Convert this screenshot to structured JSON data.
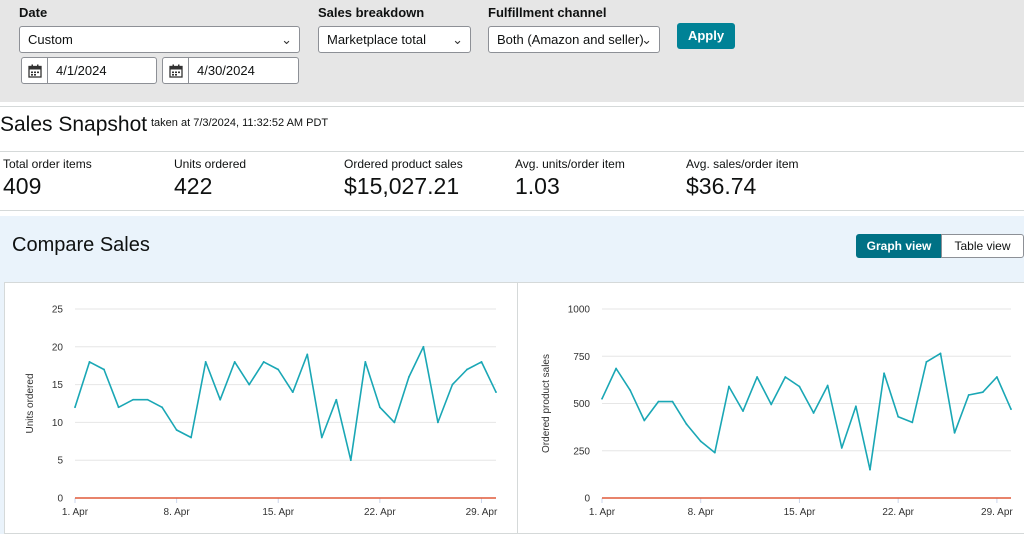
{
  "filters": {
    "date_label": "Date",
    "date_range_value": "Custom",
    "start_date": "4/1/2024",
    "end_date": "4/30/2024",
    "sales_breakdown_label": "Sales breakdown",
    "sales_breakdown_value": "Marketplace total",
    "fulfillment_label": "Fulfillment channel",
    "fulfillment_value": "Both (Amazon and seller)",
    "apply_label": "Apply"
  },
  "snapshot": {
    "title": "Sales Snapshot",
    "taken_at": "taken at 7/3/2024, 11:32:52 AM PDT",
    "metrics": [
      {
        "label": "Total order items",
        "value": "409"
      },
      {
        "label": "Units ordered",
        "value": "422"
      },
      {
        "label": "Ordered product sales",
        "value": "$15,027.21"
      },
      {
        "label": "Avg. units/order item",
        "value": "1.03"
      },
      {
        "label": "Avg. sales/order item",
        "value": "$36.74"
      }
    ]
  },
  "compare": {
    "title": "Compare Sales",
    "graph_view_label": "Graph view",
    "table_view_label": "Table view"
  },
  "colors": {
    "accent": "#008296",
    "series_line": "#1aa7b5",
    "baseline": "#e05a3a"
  },
  "chart_data": [
    {
      "type": "line",
      "ylabel": "Units ordered",
      "ylim": [
        0,
        25
      ],
      "yticks": [
        0,
        5,
        10,
        15,
        20,
        25
      ],
      "xtick_labels": [
        "1. Apr",
        "8. Apr",
        "15. Apr",
        "22. Apr",
        "29. Apr"
      ],
      "xtick_days": [
        1,
        8,
        15,
        22,
        29
      ],
      "x": [
        1,
        2,
        3,
        4,
        5,
        6,
        7,
        8,
        9,
        10,
        11,
        12,
        13,
        14,
        15,
        16,
        17,
        18,
        19,
        20,
        21,
        22,
        23,
        24,
        25,
        26,
        27,
        28,
        29,
        30
      ],
      "series": [
        {
          "values": [
            12,
            18,
            17,
            12,
            13,
            13,
            12,
            9,
            8,
            18,
            13,
            18,
            15,
            18,
            17,
            14,
            19,
            8,
            13,
            5,
            18,
            12,
            10,
            16,
            20,
            10,
            15,
            17,
            18,
            14
          ]
        },
        {
          "values": [
            0,
            0,
            0,
            0,
            0,
            0,
            0,
            0,
            0,
            0,
            0,
            0,
            0,
            0,
            0,
            0,
            0,
            0,
            0,
            0,
            0,
            0,
            0,
            0,
            0,
            0,
            0,
            0,
            0,
            0
          ]
        }
      ]
    },
    {
      "type": "line",
      "ylabel": "Ordered product sales",
      "ylim": [
        0,
        1000
      ],
      "yticks": [
        0,
        250,
        500,
        750,
        1000
      ],
      "xtick_labels": [
        "1. Apr",
        "8. Apr",
        "15. Apr",
        "22. Apr",
        "29. Apr"
      ],
      "xtick_days": [
        1,
        8,
        15,
        22,
        29
      ],
      "x": [
        1,
        2,
        3,
        4,
        5,
        6,
        7,
        8,
        9,
        10,
        11,
        12,
        13,
        14,
        15,
        16,
        17,
        18,
        19,
        20,
        21,
        22,
        23,
        24,
        25,
        26,
        27,
        28,
        29,
        30
      ],
      "series": [
        {
          "values": [
            525,
            685,
            570,
            410,
            510,
            510,
            390,
            300,
            240,
            590,
            460,
            640,
            495,
            640,
            590,
            450,
            595,
            265,
            485,
            150,
            660,
            430,
            400,
            720,
            765,
            345,
            545,
            560,
            640,
            470
          ]
        },
        {
          "values": [
            0,
            0,
            0,
            0,
            0,
            0,
            0,
            0,
            0,
            0,
            0,
            0,
            0,
            0,
            0,
            0,
            0,
            0,
            0,
            0,
            0,
            0,
            0,
            0,
            0,
            0,
            0,
            0,
            0,
            0
          ]
        }
      ]
    }
  ]
}
